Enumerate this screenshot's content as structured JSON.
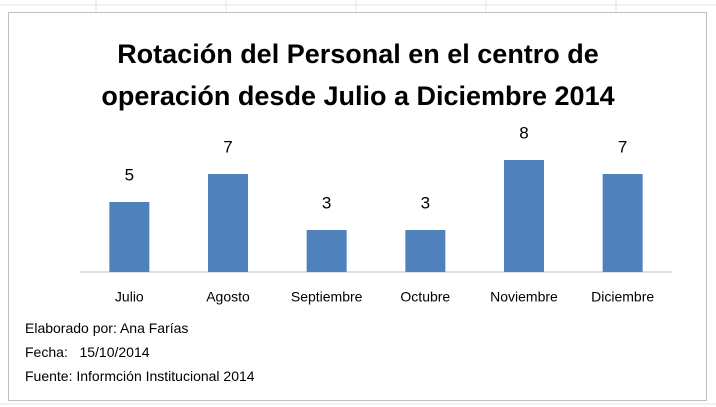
{
  "chart_data": {
    "type": "bar",
    "title": "Rotación del Personal en el centro de operación desde Julio a Diciembre 2014",
    "categories": [
      "Julio",
      "Agosto",
      "Septiembre",
      "Octubre",
      "Noviembre",
      "Diciembre"
    ],
    "values": [
      5,
      7,
      3,
      3,
      8,
      7
    ],
    "color": "#4f81bd",
    "notes": [
      "Elaborado por: Ana Farías",
      "Fecha:   15/10/2014",
      "Fuente: Informción Institucional 2014"
    ]
  }
}
